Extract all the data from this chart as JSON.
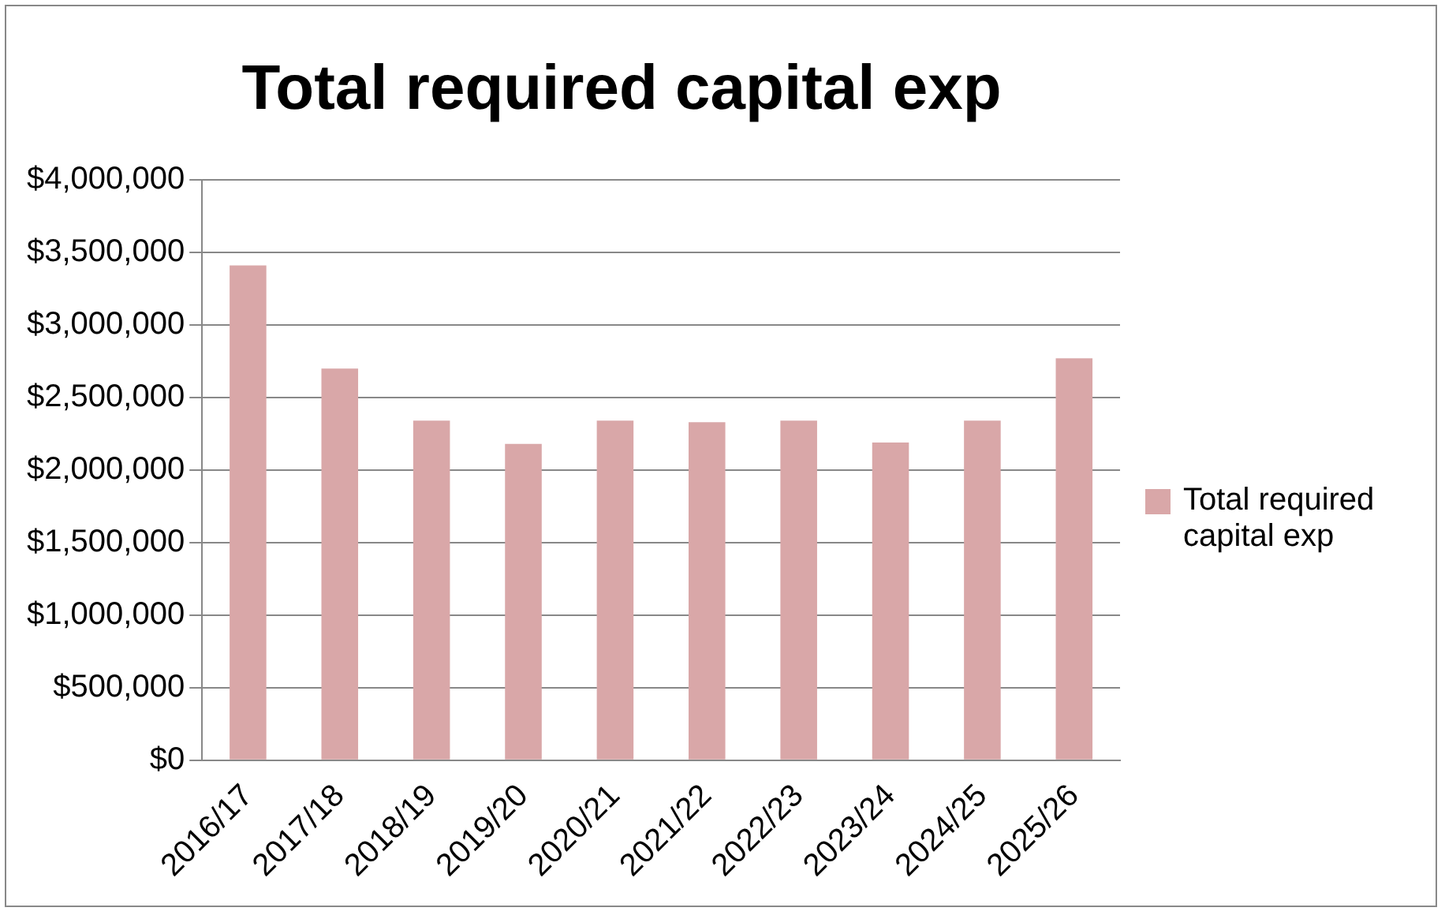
{
  "chart_data": {
    "type": "bar",
    "title": "Total required capital exp",
    "categories": [
      "2016/17",
      "2017/18",
      "2018/19",
      "2019/20",
      "2020/21",
      "2021/22",
      "2022/23",
      "2023/24",
      "2024/25",
      "2025/26"
    ],
    "series": [
      {
        "name": "Total required capital exp",
        "color": "#d9a7a8",
        "values": [
          3410000,
          2700000,
          2340000,
          2180000,
          2340000,
          2330000,
          2340000,
          2190000,
          2340000,
          2770000
        ]
      }
    ],
    "ylim": [
      0,
      4000000
    ],
    "yticks": [
      {
        "value": 0,
        "label": "$0"
      },
      {
        "value": 500000,
        "label": "$500,000"
      },
      {
        "value": 1000000,
        "label": "$1,000,000"
      },
      {
        "value": 1500000,
        "label": "$1,500,000"
      },
      {
        "value": 2000000,
        "label": "$2,000,000"
      },
      {
        "value": 2500000,
        "label": "$2,500,000"
      },
      {
        "value": 3000000,
        "label": "$3,000,000"
      },
      {
        "value": 3500000,
        "label": "$3,500,000"
      },
      {
        "value": 4000000,
        "label": "$4,000,000"
      }
    ],
    "grid": "y",
    "legend": "right"
  }
}
